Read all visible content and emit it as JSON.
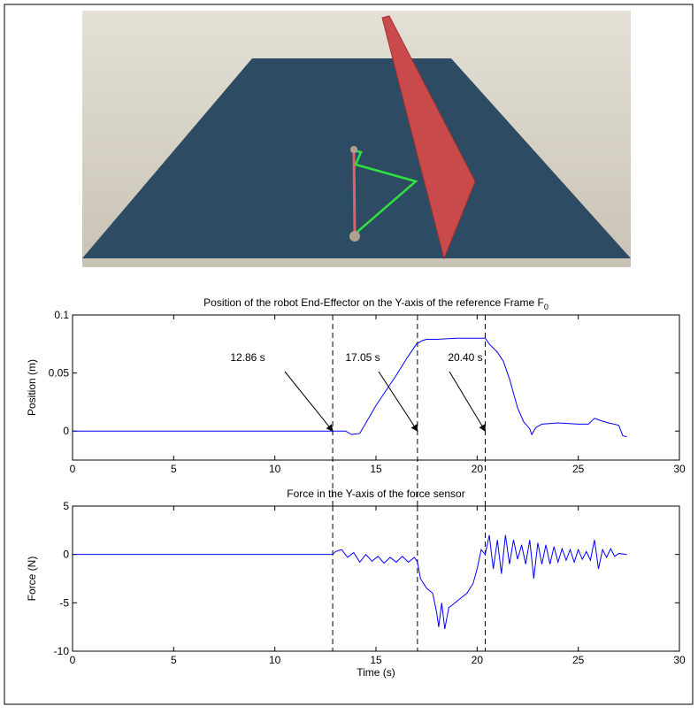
{
  "chart_data": [
    {
      "type": "line",
      "title": "Position of the robot End-Effector on the Y-axis of the reference Frame F",
      "title_subscript": "0",
      "y_label": "Position (m)",
      "xlim": [
        0,
        30
      ],
      "xticks": [
        0,
        5,
        10,
        15,
        20,
        25,
        30
      ],
      "ylim": [
        -0.025,
        0.1
      ],
      "yticks": [
        0,
        0.05,
        0.1
      ],
      "vlines": [
        12.86,
        17.05,
        20.4
      ],
      "annotations": [
        {
          "text": "12.86 s",
          "x": 12.86,
          "y": 0
        },
        {
          "text": "17.05 s",
          "x": 17.05,
          "y": 0
        },
        {
          "text": "20.40 s",
          "x": 20.4,
          "y": 0
        }
      ],
      "series": [
        {
          "color": "#0000ff",
          "x": [
            0,
            12.86,
            13.5,
            13.8,
            14.2,
            14.6,
            15,
            15.5,
            16,
            16.5,
            17,
            17.3,
            17.5,
            18,
            19,
            20,
            20.4,
            20.6,
            21,
            21.3,
            21.6,
            22,
            22.3,
            22.6,
            22.7,
            22.9,
            23.2,
            24,
            25,
            25.5,
            25.8,
            26.1,
            26.5,
            27,
            27.2,
            27.4
          ],
          "values": [
            0,
            0,
            0,
            -0.003,
            -0.002,
            0.01,
            0.022,
            0.035,
            0.048,
            0.062,
            0.075,
            0.078,
            0.079,
            0.079,
            0.08,
            0.08,
            0.08,
            0.075,
            0.068,
            0.06,
            0.045,
            0.02,
            0.008,
            0.002,
            -0.003,
            0.003,
            0.006,
            0.007,
            0.006,
            0.006,
            0.011,
            0.009,
            0.007,
            0.005,
            -0.004,
            -0.005
          ]
        }
      ]
    },
    {
      "type": "line",
      "title": "Force in the Y-axis of the force sensor",
      "x_label": "Time (s)",
      "y_label": "Force (N)",
      "xlim": [
        0,
        30
      ],
      "xticks": [
        0,
        5,
        10,
        15,
        20,
        25,
        30
      ],
      "ylim": [
        -10,
        5
      ],
      "yticks": [
        -10,
        -5,
        0,
        5
      ],
      "vlines": [
        12.86,
        17.05,
        20.4
      ],
      "series": [
        {
          "color": "#0000ff",
          "x": [
            0,
            12.86,
            13,
            13.3,
            13.6,
            13.9,
            14.2,
            14.5,
            14.8,
            15.1,
            15.4,
            15.7,
            16,
            16.3,
            16.6,
            16.9,
            17.05,
            17.2,
            17.5,
            17.8,
            18,
            18.1,
            18.25,
            18.4,
            18.6,
            18.9,
            19.2,
            19.5,
            19.8,
            20,
            20.2,
            20.4,
            20.6,
            20.8,
            21,
            21.2,
            21.4,
            21.6,
            21.8,
            22,
            22.2,
            22.4,
            22.6,
            22.8,
            23,
            23.2,
            23.4,
            23.6,
            23.8,
            24,
            24.2,
            24.4,
            24.6,
            24.8,
            25,
            25.2,
            25.4,
            25.6,
            25.8,
            26,
            26.2,
            26.4,
            26.6,
            26.8,
            27,
            27.4
          ],
          "values": [
            0,
            0,
            0.3,
            0.5,
            -0.3,
            0.2,
            -0.8,
            0,
            -0.7,
            -0.2,
            -0.9,
            -0.3,
            -0.8,
            -0.2,
            -0.8,
            -0.3,
            -0.8,
            -2.5,
            -3.5,
            -4,
            -6,
            -7.5,
            -5,
            -7.7,
            -5.5,
            -5,
            -4.5,
            -4,
            -3,
            -1.5,
            0.5,
            0,
            2,
            -1.5,
            1.5,
            -2,
            2,
            -1,
            1.5,
            -0.5,
            1,
            -1,
            1.5,
            -2.5,
            1.2,
            -1,
            1,
            -1,
            0.8,
            -0.8,
            0.6,
            -0.6,
            0.5,
            -0.8,
            0.5,
            -0.5,
            0.3,
            -0.6,
            1.5,
            -1.5,
            0.5,
            -0.3,
            0.6,
            -0.2,
            0.1,
            0
          ]
        }
      ]
    }
  ]
}
